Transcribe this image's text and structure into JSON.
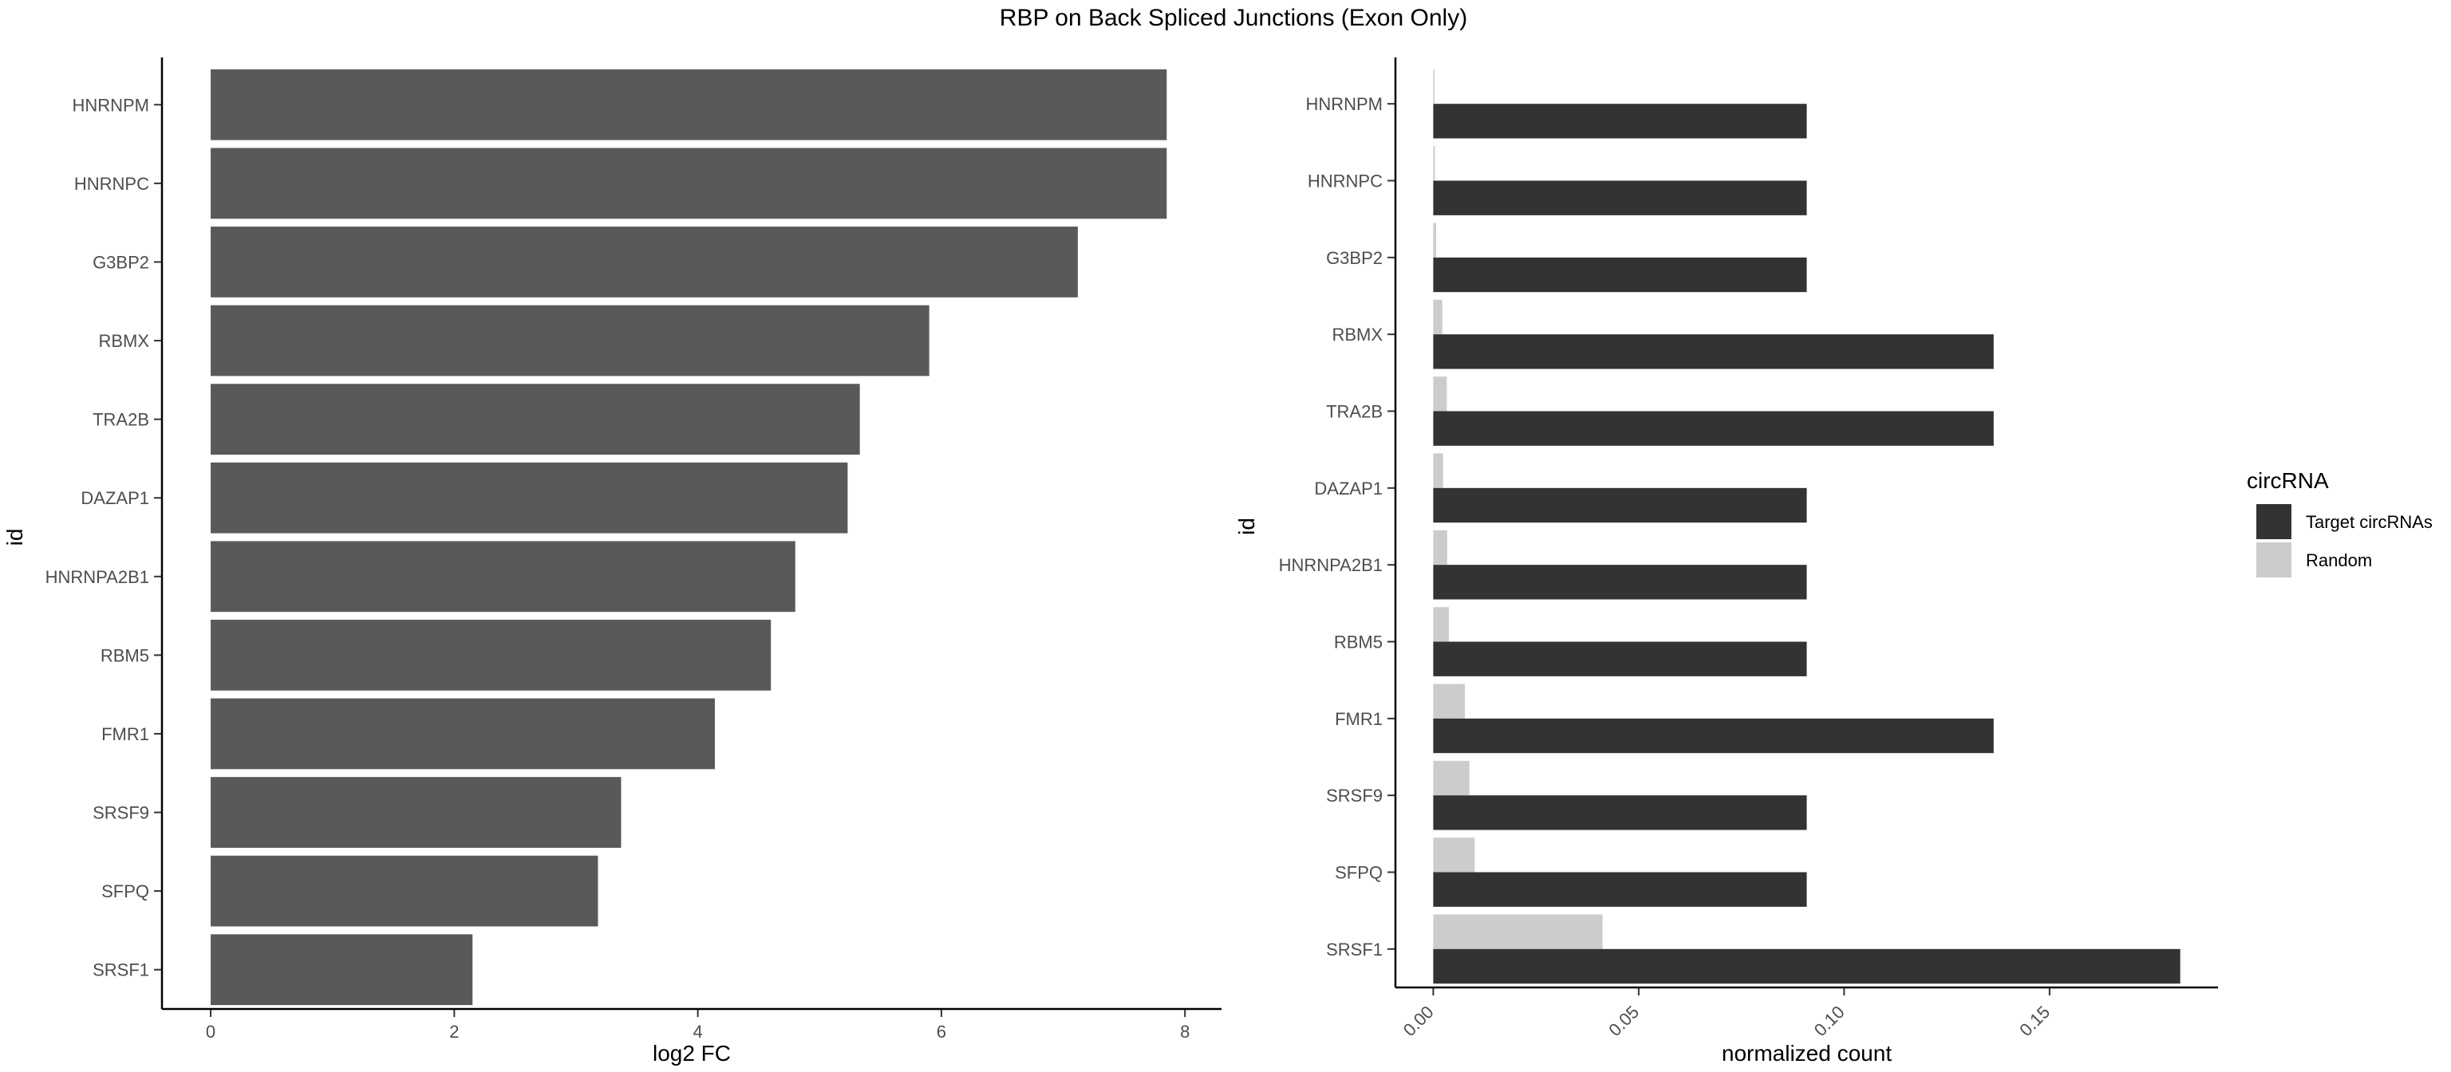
{
  "title": "RBP on Back Spliced Junctions (Exon Only)",
  "chart_data": [
    {
      "type": "bar",
      "orientation": "horizontal",
      "categories": [
        "HNRNPM",
        "HNRNPC",
        "G3BP2",
        "RBMX",
        "TRA2B",
        "DAZAP1",
        "HNRNPA2B1",
        "RBM5",
        "FMR1",
        "SRSF9",
        "SFPQ",
        "SRSF1"
      ],
      "values": [
        7.85,
        7.85,
        7.12,
        5.9,
        5.33,
        5.23,
        4.8,
        4.6,
        4.14,
        3.37,
        3.18,
        2.15
      ],
      "xlabel": "log2 FC",
      "ylabel": "id",
      "xlim": [
        -0.4,
        8.3
      ],
      "xticks": [
        0,
        2,
        4,
        6,
        8
      ],
      "xtick_labels": [
        "0",
        "2",
        "4",
        "6",
        "8"
      ],
      "colors": {
        "bar": "#595959"
      },
      "grid": false
    },
    {
      "type": "bar",
      "orientation": "horizontal",
      "grouping": "dodge",
      "categories": [
        "HNRNPM",
        "HNRNPC",
        "G3BP2",
        "RBMX",
        "TRA2B",
        "DAZAP1",
        "HNRNPA2B1",
        "RBM5",
        "FMR1",
        "SRSF9",
        "SFPQ",
        "SRSF1"
      ],
      "series": [
        {
          "name": "Target circRNAs",
          "color": "#333333",
          "values": [
            0.0909,
            0.0909,
            0.0909,
            0.1364,
            0.1364,
            0.0909,
            0.0909,
            0.0909,
            0.1364,
            0.0909,
            0.0909,
            0.1818
          ]
        },
        {
          "name": "Random",
          "color": "#cccccc",
          "values": [
            0.0003,
            0.0004,
            0.0007,
            0.0022,
            0.0033,
            0.0024,
            0.0034,
            0.0038,
            0.0077,
            0.0088,
            0.0101,
            0.0412
          ]
        }
      ],
      "xlabel": "normalized count",
      "ylabel": "id",
      "xlim": [
        -0.0092,
        0.191
      ],
      "xticks": [
        0,
        0.05,
        0.1,
        0.15
      ],
      "xtick_labels": [
        "0.00",
        "0.05",
        "0.10",
        "0.15"
      ],
      "legend": {
        "title": "circRNA",
        "position": "right",
        "entries": [
          "Target circRNAs",
          "Random"
        ]
      },
      "grid": false
    }
  ]
}
